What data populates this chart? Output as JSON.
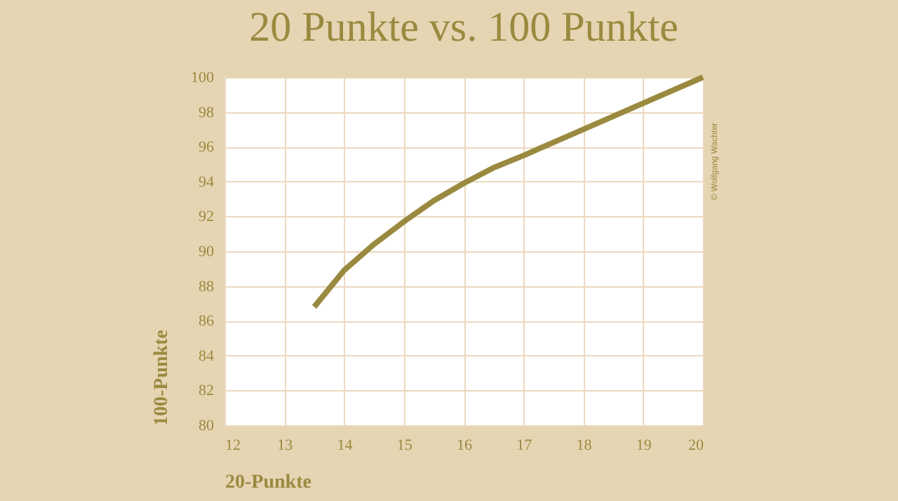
{
  "chart_data": {
    "type": "line",
    "title": "20 Punkte vs. 100 Punkte",
    "xlabel": "20-Punkte",
    "ylabel": "100-Punkte",
    "x": [
      13.5,
      14,
      14.5,
      15,
      15.5,
      16,
      16.5,
      17,
      18,
      19,
      20
    ],
    "series": [
      {
        "color": "#9a8a3f",
        "values": [
          86.8,
          88.9,
          90.4,
          91.7,
          92.9,
          93.9,
          94.8,
          95.5,
          97.0,
          98.5,
          100
        ]
      }
    ],
    "xlim": [
      12,
      20
    ],
    "xticks": [
      12,
      13,
      14,
      15,
      16,
      17,
      18,
      19,
      20
    ],
    "ylim": [
      80,
      100
    ],
    "yticks": [
      80,
      82,
      84,
      86,
      88,
      90,
      92,
      94,
      96,
      98,
      100
    ],
    "grid": true,
    "marker": "none",
    "line_style": "solid",
    "annotations": [
      "© Wolfgang Wachter"
    ]
  }
}
